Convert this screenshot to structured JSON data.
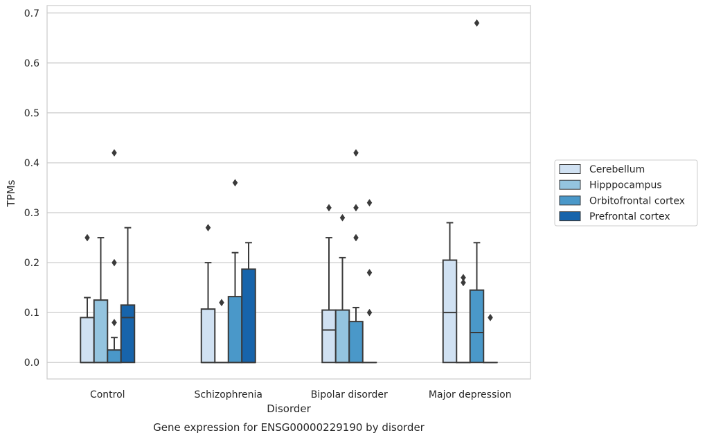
{
  "chart_data": {
    "type": "box",
    "title": "",
    "caption": "Gene expression for ENSG00000229190 by disorder",
    "xlabel": "Disorder",
    "ylabel": "TPMs",
    "ylim": [
      -0.033,
      0.715
    ],
    "yticks": [
      0.0,
      0.1,
      0.2,
      0.3,
      0.4,
      0.5,
      0.6,
      0.7
    ],
    "ytick_labels": [
      "0.0",
      "0.1",
      "0.2",
      "0.3",
      "0.4",
      "0.5",
      "0.6",
      "0.7"
    ],
    "grid": true,
    "legend_position": "right",
    "categories": [
      "Control",
      "Schizophrenia",
      "Bipolar disorder",
      "Major depression"
    ],
    "series": [
      {
        "name": "Cerebellum",
        "color": "#d0e1f2",
        "boxes": [
          {
            "q1": 0.0,
            "median": 0.0,
            "q3": 0.09,
            "whisker_low": 0.0,
            "whisker_high": 0.13,
            "outliers": [
              0.25
            ]
          },
          {
            "q1": 0.0,
            "median": 0.0,
            "q3": 0.107,
            "whisker_low": 0.0,
            "whisker_high": 0.2,
            "outliers": [
              0.27
            ]
          },
          {
            "q1": 0.0,
            "median": 0.065,
            "q3": 0.105,
            "whisker_low": 0.0,
            "whisker_high": 0.25,
            "outliers": [
              0.31
            ]
          },
          {
            "q1": 0.0,
            "median": 0.1,
            "q3": 0.205,
            "whisker_low": 0.0,
            "whisker_high": 0.28,
            "outliers": []
          }
        ]
      },
      {
        "name": "Hipppocampus",
        "color": "#94c4df",
        "boxes": [
          {
            "q1": 0.0,
            "median": 0.0,
            "q3": 0.125,
            "whisker_low": 0.0,
            "whisker_high": 0.25,
            "outliers": []
          },
          {
            "q1": 0.0,
            "median": 0.0,
            "q3": 0.0,
            "whisker_low": 0.0,
            "whisker_high": 0.0,
            "outliers": [
              0.12
            ]
          },
          {
            "q1": 0.0,
            "median": 0.0,
            "q3": 0.105,
            "whisker_low": 0.0,
            "whisker_high": 0.21,
            "outliers": [
              0.29
            ]
          },
          {
            "q1": 0.0,
            "median": 0.0,
            "q3": 0.0,
            "whisker_low": 0.0,
            "whisker_high": 0.0,
            "outliers": [
              0.16,
              0.17
            ]
          }
        ]
      },
      {
        "name": "Orbitofrontal cortex",
        "color": "#4a98c9",
        "boxes": [
          {
            "q1": 0.0,
            "median": 0.0,
            "q3": 0.025,
            "whisker_low": 0.0,
            "whisker_high": 0.05,
            "outliers": [
              0.08,
              0.2,
              0.42
            ]
          },
          {
            "q1": 0.0,
            "median": 0.0,
            "q3": 0.132,
            "whisker_low": 0.0,
            "whisker_high": 0.22,
            "outliers": [
              0.36
            ]
          },
          {
            "q1": 0.0,
            "median": 0.0,
            "q3": 0.082,
            "whisker_low": 0.0,
            "whisker_high": 0.11,
            "outliers": [
              0.25,
              0.31,
              0.42
            ]
          },
          {
            "q1": 0.0,
            "median": 0.06,
            "q3": 0.145,
            "whisker_low": 0.0,
            "whisker_high": 0.24,
            "outliers": [
              0.68
            ]
          }
        ]
      },
      {
        "name": "Prefrontal cortex",
        "color": "#1764ab",
        "boxes": [
          {
            "q1": 0.0,
            "median": 0.09,
            "q3": 0.115,
            "whisker_low": 0.0,
            "whisker_high": 0.27,
            "outliers": []
          },
          {
            "q1": 0.0,
            "median": 0.0,
            "q3": 0.187,
            "whisker_low": 0.0,
            "whisker_high": 0.24,
            "outliers": []
          },
          {
            "q1": 0.0,
            "median": 0.0,
            "q3": 0.0,
            "whisker_low": 0.0,
            "whisker_high": 0.0,
            "outliers": [
              0.1,
              0.18,
              0.32
            ]
          },
          {
            "q1": 0.0,
            "median": 0.0,
            "q3": 0.0,
            "whisker_low": 0.0,
            "whisker_high": 0.0,
            "outliers": [
              0.09
            ]
          }
        ]
      }
    ]
  }
}
